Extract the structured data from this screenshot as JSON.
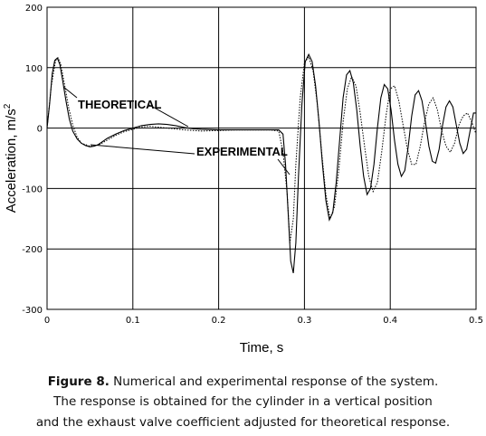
{
  "chart_data": {
    "type": "line",
    "xlabel": "Time,  s",
    "ylabel": "Acceleration, m/s",
    "ylabel_superscript": "2",
    "xlim": [
      0,
      0.5
    ],
    "ylim": [
      -300,
      200
    ],
    "x_ticks": [
      "0",
      "0.1",
      "0.2",
      "0.3",
      "0.4",
      "0.5"
    ],
    "y_ticks": [
      "200",
      "100",
      "0",
      "-100",
      "-200",
      "-300"
    ],
    "grid": true,
    "annotations": [
      {
        "text": "THEORETICAL",
        "points_to": [
          0.06,
          30
        ]
      },
      {
        "text": "EXPERIMENTAL",
        "points_to": [
          0.28,
          -65
        ]
      }
    ],
    "series": [
      {
        "name": "THEORETICAL",
        "style": "dotted",
        "x": [
          0,
          0.005,
          0.01,
          0.013,
          0.016,
          0.02,
          0.025,
          0.03,
          0.035,
          0.04,
          0.05,
          0.06,
          0.07,
          0.08,
          0.09,
          0.1,
          0.11,
          0.12,
          0.14,
          0.16,
          0.18,
          0.2,
          0.22,
          0.24,
          0.26,
          0.27,
          0.275,
          0.28,
          0.283,
          0.287,
          0.29,
          0.295,
          0.3,
          0.305,
          0.31,
          0.315,
          0.32,
          0.325,
          0.33,
          0.335,
          0.34,
          0.345,
          0.35,
          0.355,
          0.36,
          0.365,
          0.37,
          0.375,
          0.38,
          0.385,
          0.39,
          0.395,
          0.4,
          0.405,
          0.41,
          0.415,
          0.42,
          0.425,
          0.43,
          0.435,
          0.44,
          0.445,
          0.45,
          0.455,
          0.46,
          0.465,
          0.47,
          0.475,
          0.48,
          0.485,
          0.49,
          0.495,
          0.5
        ],
        "y": [
          0,
          70,
          112,
          116,
          105,
          75,
          35,
          5,
          -15,
          -25,
          -30,
          -28,
          -20,
          -12,
          -6,
          -2,
          2,
          3,
          0,
          -3,
          -5,
          -4,
          -3,
          -3,
          -3,
          -5,
          -40,
          -110,
          -190,
          -150,
          -60,
          50,
          108,
          118,
          95,
          40,
          -40,
          -110,
          -150,
          -130,
          -70,
          10,
          65,
          85,
          70,
          25,
          -30,
          -80,
          -105,
          -90,
          -40,
          20,
          65,
          70,
          45,
          5,
          -35,
          -60,
          -60,
          -30,
          10,
          40,
          50,
          30,
          -5,
          -30,
          -40,
          -25,
          5,
          20,
          25,
          10,
          -10
        ]
      },
      {
        "name": "EXPERIMENTAL",
        "style": "solid",
        "x": [
          0,
          0.003,
          0.006,
          0.009,
          0.012,
          0.015,
          0.018,
          0.022,
          0.026,
          0.03,
          0.035,
          0.04,
          0.045,
          0.05,
          0.055,
          0.06,
          0.065,
          0.07,
          0.08,
          0.09,
          0.1,
          0.11,
          0.12,
          0.13,
          0.14,
          0.15,
          0.16,
          0.17,
          0.18,
          0.2,
          0.22,
          0.24,
          0.26,
          0.27,
          0.275,
          0.278,
          0.281,
          0.284,
          0.287,
          0.29,
          0.293,
          0.297,
          0.301,
          0.305,
          0.309,
          0.313,
          0.317,
          0.321,
          0.325,
          0.329,
          0.333,
          0.337,
          0.341,
          0.345,
          0.349,
          0.353,
          0.357,
          0.361,
          0.365,
          0.369,
          0.373,
          0.377,
          0.381,
          0.385,
          0.389,
          0.393,
          0.397,
          0.401,
          0.405,
          0.409,
          0.413,
          0.417,
          0.421,
          0.425,
          0.429,
          0.433,
          0.437,
          0.441,
          0.445,
          0.449,
          0.453,
          0.457,
          0.461,
          0.465,
          0.469,
          0.473,
          0.477,
          0.481,
          0.485,
          0.489,
          0.493,
          0.497,
          0.5
        ],
        "y": [
          0,
          40,
          90,
          112,
          116,
          105,
          80,
          45,
          15,
          -5,
          -18,
          -25,
          -29,
          -31,
          -30,
          -27,
          -22,
          -17,
          -10,
          -4,
          0,
          4,
          6,
          7,
          6,
          4,
          1,
          -1,
          -2,
          -3,
          -3,
          -3,
          -3,
          -3,
          -10,
          -60,
          -140,
          -220,
          -240,
          -190,
          -80,
          40,
          110,
          122,
          110,
          70,
          10,
          -60,
          -120,
          -152,
          -140,
          -90,
          -20,
          50,
          88,
          95,
          75,
          30,
          -30,
          -80,
          -110,
          -100,
          -60,
          0,
          50,
          72,
          65,
          30,
          -20,
          -60,
          -80,
          -70,
          -30,
          20,
          55,
          62,
          45,
          10,
          -30,
          -55,
          -58,
          -35,
          5,
          35,
          45,
          35,
          5,
          -25,
          -42,
          -35,
          -5,
          25,
          25
        ]
      }
    ]
  },
  "caption": {
    "line1_bold": "Figure 8.",
    "line1_rest": " Numerical and experimental response of the system.",
    "line2": "The response is obtained for the cylinder in a vertical position",
    "line3": "and the exhaust valve coefficient adjusted for theoretical response."
  }
}
